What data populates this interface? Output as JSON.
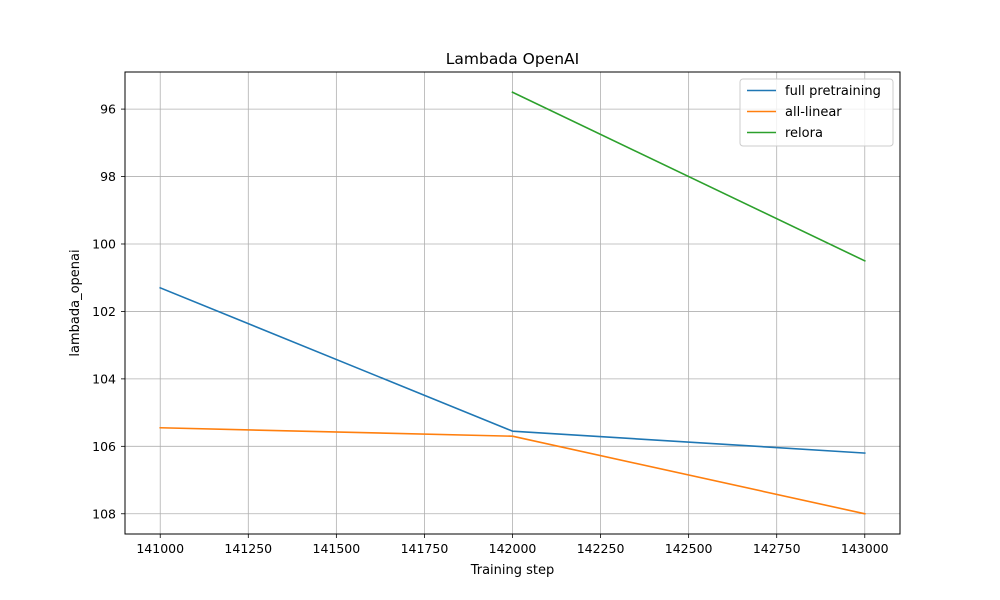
{
  "chart_data": {
    "type": "line",
    "title": "Lambada OpenAI",
    "xlabel": "Training step",
    "ylabel": "lambada_openai",
    "x": [
      141000,
      142000,
      143000
    ],
    "xlim": [
      140900,
      143100
    ],
    "ylim": [
      108.6,
      94.9
    ],
    "y_inverted": true,
    "xticks": [
      141000,
      141250,
      141500,
      141750,
      142000,
      142250,
      142500,
      142750,
      143000
    ],
    "yticks": [
      96,
      98,
      100,
      102,
      104,
      106,
      108
    ],
    "grid": true,
    "legend_position": "top-right",
    "series": [
      {
        "name": "full pretraining",
        "color": "#1f77b4",
        "x": [
          141000,
          142000,
          143000
        ],
        "values": [
          101.3,
          105.55,
          106.2
        ]
      },
      {
        "name": "all-linear",
        "color": "#ff7f0e",
        "x": [
          141000,
          142000,
          143000
        ],
        "values": [
          105.45,
          105.7,
          108.0
        ]
      },
      {
        "name": "relora",
        "color": "#2ca02c",
        "x": [
          142000,
          143000
        ],
        "values": [
          95.5,
          100.5
        ]
      }
    ]
  }
}
